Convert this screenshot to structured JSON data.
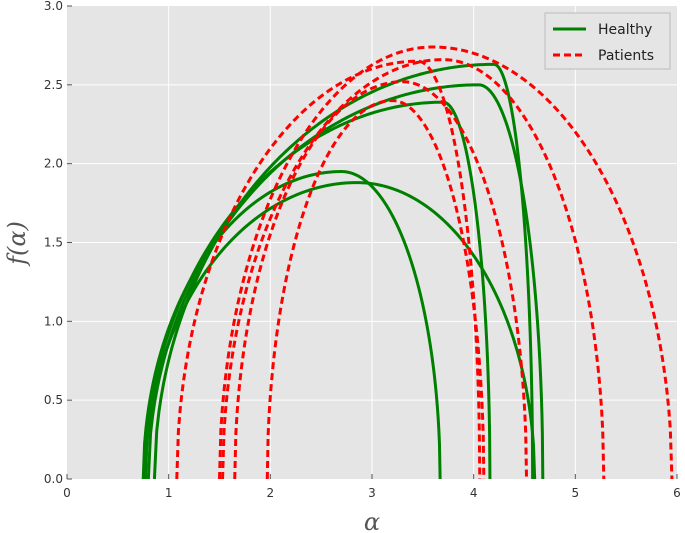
{
  "chart_data": {
    "type": "line",
    "xlabel": "α",
    "ylabel": "f(α)",
    "xlim": [
      0,
      6
    ],
    "ylim": [
      0,
      3.0
    ],
    "xticks": [
      "0",
      "1",
      "2",
      "3",
      "4",
      "5",
      "6"
    ],
    "yticks": [
      "0.0",
      "0.5",
      "1.0",
      "1.5",
      "2.0",
      "2.5",
      "3.0"
    ],
    "grid": true,
    "legend_position": "top-right",
    "legend": [
      {
        "label": "Healthy",
        "color": "#008000",
        "style": "solid"
      },
      {
        "label": "Patients",
        "color": "#ff0000",
        "style": "dashed"
      }
    ],
    "series": [
      {
        "group": "Healthy",
        "amin": 0.77,
        "a0": 2.85,
        "fmax": 1.88,
        "amax": 4.6
      },
      {
        "group": "Healthy",
        "amin": 0.75,
        "a0": 2.7,
        "fmax": 1.95,
        "amax": 3.67
      },
      {
        "group": "Healthy",
        "amin": 0.77,
        "a0": 3.7,
        "fmax": 2.39,
        "amax": 4.16
      },
      {
        "group": "Healthy",
        "amin": 0.8,
        "a0": 4.05,
        "fmax": 2.5,
        "amax": 4.68
      },
      {
        "group": "Healthy",
        "amin": 0.86,
        "a0": 4.2,
        "fmax": 2.63,
        "amax": 4.58
      },
      {
        "group": "Patients",
        "amin": 1.08,
        "a0": 3.45,
        "fmax": 2.65,
        "amax": 4.06
      },
      {
        "group": "Patients",
        "amin": 1.5,
        "a0": 3.6,
        "fmax": 2.74,
        "amax": 5.95
      },
      {
        "group": "Patients",
        "amin": 1.53,
        "a0": 3.7,
        "fmax": 2.66,
        "amax": 5.28
      },
      {
        "group": "Patients",
        "amin": 1.65,
        "a0": 3.3,
        "fmax": 2.52,
        "amax": 4.52
      },
      {
        "group": "Patients",
        "amin": 1.97,
        "a0": 3.2,
        "fmax": 2.4,
        "amax": 4.1
      }
    ]
  }
}
